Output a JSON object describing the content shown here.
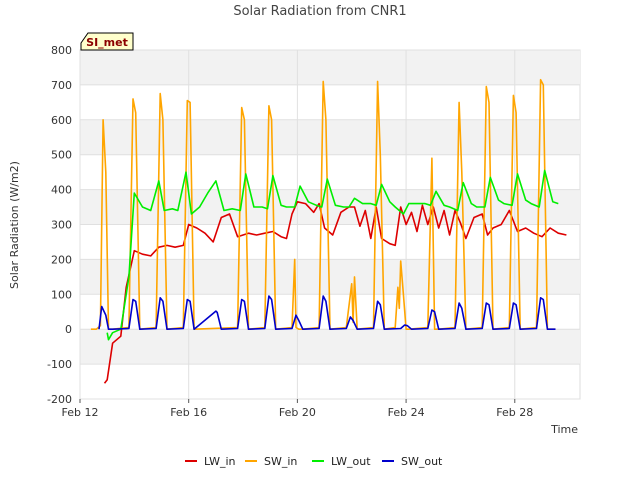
{
  "chart_data": {
    "type": "line",
    "title": "Solar Radiation from CNR1",
    "xlabel": "Time",
    "ylabel": "Solar Radiation (W/m2)",
    "badge": "SI_met",
    "xlim": [
      12,
      30.4
    ],
    "ylim": [
      -200,
      800
    ],
    "x_units": "day of February",
    "x_ticks": [
      12,
      16,
      20,
      24,
      28
    ],
    "x_tick_labels": [
      "Feb 12",
      "Feb 16",
      "Feb 20",
      "Feb 24",
      "Feb 28"
    ],
    "y_ticks": [
      -200,
      -100,
      0,
      100,
      200,
      300,
      400,
      500,
      600,
      700,
      800
    ],
    "y_tick_labels": [
      "-200",
      "-100",
      "0",
      "100",
      "200",
      "300",
      "400",
      "500",
      "600",
      "700",
      "800"
    ],
    "grid": true,
    "legend_position": "bottom",
    "series": [
      {
        "name": "LW_in",
        "color": "#dd0000",
        "x": [
          12.9,
          13.0,
          13.2,
          13.5,
          13.7,
          14.0,
          14.3,
          14.6,
          14.9,
          15.2,
          15.5,
          15.8,
          16.0,
          16.3,
          16.6,
          16.9,
          17.2,
          17.5,
          17.8,
          18.2,
          18.5,
          18.8,
          19.1,
          19.4,
          19.6,
          19.8,
          20.0,
          20.3,
          20.6,
          20.8,
          21.0,
          21.3,
          21.6,
          21.9,
          22.1,
          22.3,
          22.5,
          22.7,
          22.9,
          23.1,
          23.4,
          23.6,
          23.8,
          24.0,
          24.2,
          24.4,
          24.6,
          24.8,
          25.0,
          25.2,
          25.4,
          25.6,
          25.8,
          26.0,
          26.2,
          26.5,
          26.8,
          27.0,
          27.2,
          27.5,
          27.8,
          28.1,
          28.4,
          28.7,
          29.0,
          29.3,
          29.6,
          29.9
        ],
        "y": [
          -155,
          -145,
          -40,
          -20,
          120,
          225,
          215,
          210,
          235,
          240,
          235,
          240,
          300,
          290,
          275,
          250,
          320,
          330,
          265,
          275,
          270,
          275,
          280,
          265,
          260,
          330,
          365,
          360,
          335,
          360,
          290,
          270,
          335,
          350,
          350,
          295,
          340,
          260,
          350,
          260,
          245,
          240,
          350,
          300,
          335,
          280,
          355,
          300,
          350,
          290,
          340,
          270,
          340,
          305,
          260,
          320,
          330,
          270,
          290,
          300,
          340,
          280,
          290,
          275,
          265,
          290,
          275,
          270
        ]
      },
      {
        "name": "SW_in",
        "color": "#ffa500",
        "x": [
          12.4,
          12.6,
          12.75,
          12.85,
          12.95,
          13.05,
          13.2,
          13.8,
          13.95,
          14.05,
          14.2,
          14.8,
          14.95,
          15.05,
          15.2,
          15.8,
          15.95,
          16.05,
          16.2,
          17.8,
          17.95,
          18.05,
          18.2,
          18.8,
          18.95,
          19.05,
          19.2,
          19.8,
          19.9,
          19.95,
          20.05,
          20.2,
          20.8,
          20.95,
          21.05,
          21.2,
          21.8,
          22.0,
          22.05,
          22.1,
          22.2,
          22.8,
          22.95,
          23.05,
          23.2,
          23.6,
          23.7,
          23.75,
          23.8,
          23.9,
          24.0,
          24.1,
          24.8,
          24.95,
          25.05,
          25.2,
          25.8,
          25.95,
          26.05,
          26.2,
          26.8,
          26.95,
          27.05,
          27.2,
          27.8,
          27.95,
          28.05,
          28.2,
          28.8,
          28.95,
          29.05,
          29.2,
          29.5
        ],
        "y": [
          0,
          0,
          10,
          600,
          450,
          0,
          0,
          5,
          660,
          620,
          0,
          5,
          675,
          600,
          0,
          5,
          655,
          650,
          0,
          5,
          635,
          600,
          0,
          5,
          640,
          600,
          0,
          5,
          200,
          5,
          0,
          0,
          5,
          710,
          600,
          0,
          5,
          130,
          20,
          150,
          0,
          5,
          710,
          500,
          0,
          5,
          120,
          60,
          195,
          100,
          0,
          0,
          5,
          490,
          0,
          0,
          5,
          650,
          450,
          0,
          5,
          695,
          650,
          0,
          5,
          670,
          620,
          0,
          5,
          715,
          700,
          0,
          0
        ]
      },
      {
        "name": "LW_out",
        "color": "#00ee00",
        "x": [
          13.0,
          13.05,
          13.2,
          13.5,
          13.8,
          14.0,
          14.3,
          14.6,
          14.9,
          15.1,
          15.4,
          15.6,
          15.9,
          16.1,
          16.4,
          16.7,
          17.0,
          17.3,
          17.6,
          17.9,
          18.1,
          18.4,
          18.7,
          18.9,
          19.1,
          19.4,
          19.6,
          19.9,
          20.1,
          20.4,
          20.7,
          20.9,
          21.1,
          21.4,
          21.7,
          21.9,
          22.1,
          22.4,
          22.7,
          22.9,
          23.1,
          23.4,
          23.6,
          23.9,
          24.1,
          24.4,
          24.7,
          24.9,
          25.1,
          25.4,
          25.6,
          25.9,
          26.1,
          26.4,
          26.6,
          26.9,
          27.1,
          27.4,
          27.6,
          27.9,
          28.1,
          28.4,
          28.6,
          28.9,
          29.1,
          29.4,
          29.6
        ],
        "y": [
          -10,
          -30,
          -10,
          0,
          150,
          390,
          350,
          340,
          425,
          340,
          345,
          340,
          450,
          330,
          350,
          390,
          425,
          340,
          345,
          340,
          445,
          350,
          350,
          345,
          440,
          355,
          350,
          350,
          410,
          365,
          355,
          350,
          430,
          355,
          350,
          350,
          375,
          360,
          360,
          355,
          415,
          365,
          350,
          330,
          360,
          360,
          360,
          355,
          395,
          355,
          350,
          340,
          420,
          360,
          350,
          350,
          435,
          370,
          360,
          355,
          445,
          370,
          360,
          350,
          455,
          365,
          360
        ]
      },
      {
        "name": "SW_out",
        "color": "#0000cc",
        "x": [
          12.7,
          12.8,
          12.95,
          13.05,
          13.2,
          13.8,
          13.95,
          14.05,
          14.2,
          14.8,
          14.95,
          15.05,
          15.2,
          15.8,
          15.95,
          16.05,
          16.2,
          17.0,
          17.05,
          17.2,
          17.8,
          17.95,
          18.05,
          18.2,
          18.8,
          18.95,
          19.05,
          19.2,
          19.8,
          19.95,
          20.05,
          20.2,
          20.8,
          20.95,
          21.05,
          21.2,
          21.8,
          21.95,
          22.05,
          22.2,
          22.8,
          22.95,
          23.05,
          23.2,
          23.8,
          23.95,
          24.05,
          24.2,
          24.8,
          24.95,
          25.05,
          25.2,
          25.8,
          25.95,
          26.05,
          26.2,
          26.8,
          26.95,
          27.05,
          27.2,
          27.8,
          27.95,
          28.05,
          28.2,
          28.8,
          28.95,
          29.05,
          29.2,
          29.5
        ],
        "y": [
          0,
          65,
          40,
          0,
          0,
          2,
          85,
          80,
          0,
          2,
          90,
          80,
          0,
          2,
          85,
          80,
          0,
          52,
          48,
          0,
          2,
          85,
          80,
          0,
          2,
          95,
          85,
          0,
          2,
          40,
          25,
          0,
          2,
          95,
          80,
          0,
          2,
          35,
          25,
          0,
          2,
          80,
          70,
          0,
          2,
          12,
          10,
          0,
          2,
          55,
          50,
          0,
          2,
          75,
          60,
          0,
          2,
          75,
          70,
          0,
          2,
          75,
          70,
          0,
          2,
          90,
          85,
          0,
          0
        ]
      }
    ]
  }
}
